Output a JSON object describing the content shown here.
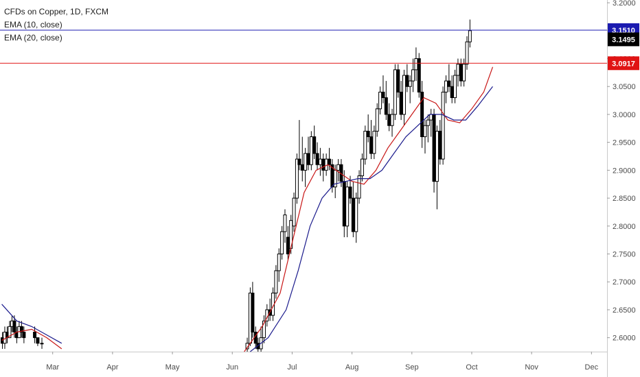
{
  "header": {
    "title": "CFDs on Copper, 1D, FXCM",
    "ema10_label": "EMA (10, close)",
    "ema20_label": "EMA (20, close)"
  },
  "colors": {
    "line_blue": "#1b1bb0",
    "line_red": "#e01414",
    "candle_up": "#ffffff",
    "candle_down": "#000000",
    "ema10": "#c81616",
    "ema20": "#1a1a8c"
  },
  "chart_data": {
    "type": "candlestick",
    "title": "CFDs on Copper, 1D, FXCM",
    "ylim": [
      2.575,
      3.205
    ],
    "y_ticks": [
      "3.2000",
      "3.1500",
      "3.1000",
      "3.0500",
      "3.0000",
      "2.9500",
      "2.9000",
      "2.8500",
      "2.8000",
      "2.7500",
      "2.7000",
      "2.6500",
      "2.6000"
    ],
    "x_ticks": [
      "Mar",
      "Apr",
      "May",
      "Jun",
      "Jul",
      "Aug",
      "Sep",
      "Oct",
      "Nov",
      "Dec"
    ],
    "x_tick_pos": [
      2.8,
      3.8,
      4.8,
      5.8,
      6.8,
      7.8,
      8.8,
      9.8,
      10.8,
      11.8
    ],
    "xlim": [
      1.92,
      12.06
    ],
    "price_tags": [
      {
        "label": "3.1510",
        "value": 3.151,
        "bg": "#1b1bb0",
        "line": true
      },
      {
        "label": "3.1495",
        "value": 3.1345,
        "bg": "#000000",
        "line": false
      },
      {
        "label": "3.0917",
        "value": 3.0917,
        "bg": "#e01414",
        "line": true
      }
    ],
    "ema10": {
      "name": "EMA (10, close)",
      "x": [
        1.95,
        2.2,
        2.45,
        2.7,
        2.95,
        6.0,
        6.3,
        6.6,
        6.8,
        7.0,
        7.2,
        7.4,
        7.6,
        7.8,
        8.0,
        8.2,
        8.4,
        8.6,
        8.8,
        9.0,
        9.2,
        9.4,
        9.6,
        9.8,
        10.0,
        10.15
      ],
      "y": [
        2.595,
        2.61,
        2.615,
        2.6,
        2.58,
        2.575,
        2.62,
        2.68,
        2.77,
        2.86,
        2.9,
        2.91,
        2.895,
        2.88,
        2.875,
        2.9,
        2.94,
        2.97,
        3.0,
        3.03,
        3.02,
        2.99,
        2.985,
        3.01,
        3.04,
        3.085
      ]
    },
    "ema20": {
      "name": "EMA (20, close)",
      "x": [
        1.95,
        2.2,
        2.45,
        2.7,
        2.95,
        6.1,
        6.4,
        6.7,
        6.9,
        7.1,
        7.3,
        7.5,
        7.7,
        7.9,
        8.1,
        8.3,
        8.5,
        8.7,
        8.9,
        9.1,
        9.3,
        9.5,
        9.7,
        9.9,
        10.15
      ],
      "y": [
        2.66,
        2.63,
        2.62,
        2.605,
        2.59,
        2.575,
        2.6,
        2.65,
        2.72,
        2.8,
        2.85,
        2.875,
        2.88,
        2.885,
        2.885,
        2.9,
        2.93,
        2.96,
        2.98,
        3.0,
        3.0,
        2.99,
        2.99,
        3.015,
        3.05
      ]
    },
    "candles": [
      [
        1.96,
        2.6,
        2.61,
        2.58,
        2.59
      ],
      [
        2.0,
        2.59,
        2.62,
        2.58,
        2.61
      ],
      [
        2.04,
        2.61,
        2.62,
        2.59,
        2.6
      ],
      [
        2.08,
        2.6,
        2.63,
        2.6,
        2.62
      ],
      [
        2.12,
        2.62,
        2.64,
        2.61,
        2.63
      ],
      [
        2.16,
        2.63,
        2.64,
        2.6,
        2.61
      ],
      [
        2.2,
        2.61,
        2.62,
        2.59,
        2.6
      ],
      [
        2.24,
        2.6,
        2.63,
        2.6,
        2.62
      ],
      [
        2.28,
        2.62,
        2.63,
        2.6,
        2.61
      ],
      [
        2.32,
        2.61,
        2.62,
        2.59,
        2.6
      ],
      [
        2.5,
        2.61,
        2.62,
        2.59,
        2.6
      ],
      [
        2.55,
        2.6,
        2.6,
        2.585,
        2.59
      ],
      [
        2.62,
        2.59,
        2.6,
        2.58,
        2.59
      ],
      [
        6.05,
        2.58,
        2.6,
        2.575,
        2.59
      ],
      [
        6.1,
        2.59,
        2.69,
        2.585,
        2.68
      ],
      [
        6.14,
        2.68,
        2.7,
        2.6,
        2.61
      ],
      [
        6.19,
        2.61,
        2.62,
        2.58,
        2.59
      ],
      [
        6.23,
        2.59,
        2.6,
        2.575,
        2.58
      ],
      [
        6.28,
        2.58,
        2.62,
        2.575,
        2.6
      ],
      [
        6.33,
        2.6,
        2.64,
        2.59,
        2.63
      ],
      [
        6.38,
        2.63,
        2.66,
        2.62,
        2.65
      ],
      [
        6.43,
        2.65,
        2.67,
        2.63,
        2.64
      ],
      [
        6.48,
        2.64,
        2.69,
        2.63,
        2.68
      ],
      [
        6.53,
        2.68,
        2.73,
        2.67,
        2.72
      ],
      [
        6.58,
        2.72,
        2.76,
        2.7,
        2.75
      ],
      [
        6.63,
        2.75,
        2.8,
        2.74,
        2.79
      ],
      [
        6.68,
        2.79,
        2.83,
        2.77,
        2.82
      ],
      [
        6.73,
        2.78,
        2.8,
        2.74,
        2.75
      ],
      [
        6.78,
        2.76,
        2.82,
        2.75,
        2.81
      ],
      [
        6.83,
        2.8,
        2.86,
        2.79,
        2.85
      ],
      [
        6.88,
        2.85,
        2.93,
        2.84,
        2.92
      ],
      [
        6.92,
        2.92,
        2.99,
        2.9,
        2.91
      ],
      [
        6.97,
        2.91,
        2.96,
        2.88,
        2.9
      ],
      [
        7.02,
        2.9,
        2.94,
        2.87,
        2.93
      ],
      [
        7.07,
        2.93,
        2.96,
        2.9,
        2.91
      ],
      [
        7.12,
        2.91,
        2.97,
        2.9,
        2.96
      ],
      [
        7.17,
        2.96,
        2.98,
        2.92,
        2.93
      ],
      [
        7.22,
        2.93,
        2.95,
        2.9,
        2.91
      ],
      [
        7.27,
        2.91,
        2.94,
        2.89,
        2.92
      ],
      [
        7.32,
        2.92,
        2.93,
        2.88,
        2.9
      ],
      [
        7.37,
        2.9,
        2.93,
        2.89,
        2.92
      ],
      [
        7.42,
        2.92,
        2.94,
        2.9,
        2.91
      ],
      [
        7.47,
        2.91,
        2.92,
        2.86,
        2.87
      ],
      [
        7.52,
        2.87,
        2.91,
        2.85,
        2.9
      ],
      [
        7.57,
        2.9,
        2.92,
        2.88,
        2.91
      ],
      [
        7.62,
        2.91,
        2.92,
        2.87,
        2.88
      ],
      [
        7.67,
        2.88,
        2.9,
        2.78,
        2.8
      ],
      [
        7.72,
        2.8,
        2.88,
        2.78,
        2.87
      ],
      [
        7.77,
        2.87,
        2.89,
        2.84,
        2.85
      ],
      [
        7.82,
        2.85,
        2.88,
        2.78,
        2.79
      ],
      [
        7.87,
        2.79,
        2.86,
        2.77,
        2.85
      ],
      [
        7.92,
        2.85,
        2.9,
        2.84,
        2.89
      ],
      [
        7.97,
        2.89,
        2.93,
        2.88,
        2.92
      ],
      [
        8.02,
        2.92,
        2.98,
        2.91,
        2.97
      ],
      [
        8.07,
        2.97,
        3.0,
        2.95,
        2.96
      ],
      [
        8.12,
        2.96,
        2.99,
        2.92,
        2.93
      ],
      [
        8.17,
        2.93,
        2.98,
        2.92,
        2.97
      ],
      [
        8.22,
        2.97,
        3.02,
        2.96,
        3.01
      ],
      [
        8.27,
        3.01,
        3.05,
        3.0,
        3.04
      ],
      [
        8.32,
        3.04,
        3.07,
        3.02,
        3.03
      ],
      [
        8.37,
        3.03,
        3.06,
        2.99,
        3.0
      ],
      [
        8.42,
        3.0,
        3.02,
        2.97,
        2.98
      ],
      [
        8.47,
        2.98,
        3.01,
        2.96,
        3.0
      ],
      [
        8.52,
        3.0,
        3.09,
        2.99,
        3.08
      ],
      [
        8.57,
        3.08,
        3.09,
        3.03,
        3.04
      ],
      [
        8.62,
        3.04,
        3.06,
        2.99,
        3.0
      ],
      [
        8.67,
        3.0,
        3.08,
        2.98,
        3.07
      ],
      [
        8.72,
        3.07,
        3.09,
        3.04,
        3.05
      ],
      [
        8.77,
        3.05,
        3.07,
        3.02,
        3.06
      ],
      [
        8.82,
        3.06,
        3.1,
        3.04,
        3.08
      ],
      [
        8.87,
        3.08,
        3.12,
        3.06,
        3.1
      ],
      [
        8.92,
        3.1,
        3.11,
        3.03,
        3.04
      ],
      [
        8.97,
        3.04,
        3.06,
        2.94,
        2.96
      ],
      [
        9.02,
        2.96,
        2.99,
        2.93,
        2.98
      ],
      [
        9.07,
        2.98,
        3.0,
        2.95,
        2.99
      ],
      [
        9.12,
        2.99,
        3.01,
        2.96,
        3.0
      ],
      [
        9.17,
        3.0,
        3.01,
        2.86,
        2.88
      ],
      [
        9.22,
        2.88,
        2.98,
        2.83,
        2.97
      ],
      [
        9.27,
        2.97,
        2.99,
        2.91,
        2.92
      ],
      [
        9.32,
        2.92,
        3.05,
        2.91,
        3.04
      ],
      [
        9.37,
        3.04,
        3.07,
        3.02,
        3.06
      ],
      [
        9.42,
        3.06,
        3.09,
        3.04,
        3.05
      ],
      [
        9.47,
        3.05,
        3.07,
        3.02,
        3.03
      ],
      [
        9.52,
        3.03,
        3.08,
        3.02,
        3.07
      ],
      [
        9.57,
        3.07,
        3.1,
        3.05,
        3.09
      ],
      [
        9.62,
        3.09,
        3.1,
        3.05,
        3.06
      ],
      [
        9.67,
        3.06,
        3.1,
        3.05,
        3.09
      ],
      [
        9.72,
        3.09,
        3.14,
        3.08,
        3.13
      ],
      [
        9.77,
        3.13,
        3.17,
        3.12,
        3.15
      ]
    ]
  }
}
